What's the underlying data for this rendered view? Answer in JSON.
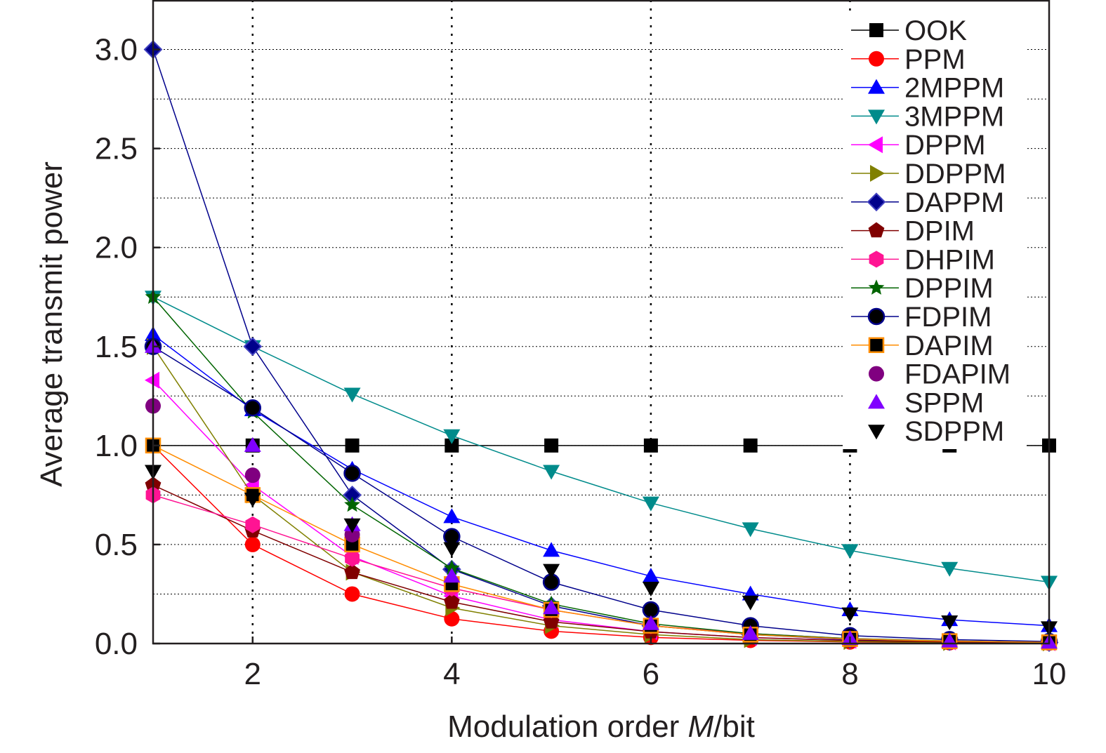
{
  "chart_data": {
    "type": "line",
    "xlabel_prefix": "Modulation order ",
    "xlabel_var": "M",
    "xlabel_suffix": "/bit",
    "ylabel": "Average transmit power",
    "xlim": [
      1,
      10
    ],
    "ylim": [
      0,
      3.25
    ],
    "xticks": [
      2,
      4,
      6,
      8,
      10
    ],
    "yticks": [
      0.0,
      0.5,
      1.0,
      1.5,
      2.0,
      2.5,
      3.0
    ],
    "ytick_labels": [
      "0.0",
      "0.5",
      "1.0",
      "1.5",
      "2.0",
      "2.5",
      "3.0"
    ],
    "grid": true,
    "legend_position": "top-right",
    "x": [
      1,
      2,
      3,
      4,
      5,
      6,
      7,
      8,
      9,
      10
    ],
    "series": [
      {
        "name": "OOK",
        "color": "#000000",
        "line_color": "#000000",
        "marker": "square",
        "values": [
          1.0,
          1.0,
          1.0,
          1.0,
          1.0,
          1.0,
          1.0,
          1.0,
          1.0,
          1.0
        ]
      },
      {
        "name": "PPM",
        "color": "#ff0000",
        "line_color": "#ff0000",
        "marker": "circle",
        "values": [
          1.0,
          0.5,
          0.25,
          0.125,
          0.0625,
          0.031,
          0.016,
          0.008,
          0.004,
          0.002
        ]
      },
      {
        "name": "2MPPM",
        "color": "#0000ff",
        "line_color": "#0000ff",
        "marker": "triangle-up",
        "values": [
          1.56,
          1.18,
          0.88,
          0.64,
          0.47,
          0.34,
          0.25,
          0.17,
          0.12,
          0.09
        ]
      },
      {
        "name": "3MPPM",
        "color": "#008b8b",
        "line_color": "#008b8b",
        "marker": "triangle-down",
        "values": [
          1.75,
          1.5,
          1.26,
          1.05,
          0.87,
          0.71,
          0.58,
          0.47,
          0.38,
          0.31
        ]
      },
      {
        "name": "DPPM",
        "color": "#ff00ff",
        "line_color": "#ff00ff",
        "marker": "triangle-left",
        "values": [
          1.33,
          0.8,
          0.44,
          0.24,
          0.12,
          0.06,
          0.03,
          0.016,
          0.008,
          0.004
        ]
      },
      {
        "name": "DDPPM",
        "color": "#808000",
        "line_color": "#808000",
        "marker": "triangle-right",
        "values": [
          1.5,
          0.75,
          0.36,
          0.18,
          0.09,
          0.045,
          0.02,
          0.01,
          0.005,
          0.003
        ]
      },
      {
        "name": "DAPPM",
        "color": "#00008b",
        "line_color": "#00008b",
        "marker": "diamond",
        "values": [
          3.0,
          1.5,
          0.75,
          0.375,
          0.19,
          0.09,
          0.045,
          0.02,
          0.01,
          0.005
        ]
      },
      {
        "name": "DPIM",
        "color": "#800000",
        "line_color": "#800000",
        "marker": "pentagon",
        "values": [
          0.8,
          0.57,
          0.36,
          0.21,
          0.11,
          0.06,
          0.03,
          0.015,
          0.008,
          0.004
        ]
      },
      {
        "name": "DHPIM",
        "color": "#ff1493",
        "line_color": "#ff1493",
        "marker": "hexagon",
        "values": [
          0.75,
          0.6,
          0.43,
          0.28,
          0.17,
          0.09,
          0.05,
          0.025,
          0.013,
          0.006
        ]
      },
      {
        "name": "DPPIM",
        "color": "#006400",
        "line_color": "#006400",
        "marker": "star",
        "values": [
          1.75,
          1.17,
          0.7,
          0.38,
          0.2,
          0.1,
          0.05,
          0.025,
          0.013,
          0.006
        ]
      },
      {
        "name": "FDPIM",
        "color": "#000000",
        "line_color": "#00008b",
        "marker": "circle-dark",
        "values": [
          1.5,
          1.19,
          0.86,
          0.54,
          0.31,
          0.17,
          0.09,
          0.04,
          0.02,
          0.01
        ]
      },
      {
        "name": "DAPIM",
        "color": "#000000",
        "line_color": "#ff8c00",
        "marker": "square-orange",
        "values": [
          1.0,
          0.75,
          0.5,
          0.3,
          0.17,
          0.09,
          0.045,
          0.023,
          0.012,
          0.006
        ]
      },
      {
        "name": "FDAPIM",
        "color": "#800080",
        "line_color": null,
        "marker": "circle",
        "values": [
          1.2,
          0.85,
          0.55,
          null,
          null,
          null,
          null,
          null,
          null,
          null
        ]
      },
      {
        "name": "SPPM",
        "color": "#8000ff",
        "line_color": null,
        "marker": "triangle-up",
        "values": [
          1.5,
          1.0,
          0.6,
          0.34,
          0.18,
          0.1,
          0.05,
          0.025,
          0.012,
          0.006
        ]
      },
      {
        "name": "SDPPM",
        "color": "#000000",
        "line_color": null,
        "marker": "triangle-down",
        "values": [
          0.87,
          0.73,
          0.6,
          0.48,
          0.37,
          0.28,
          0.21,
          0.15,
          0.11,
          0.08
        ]
      }
    ]
  }
}
